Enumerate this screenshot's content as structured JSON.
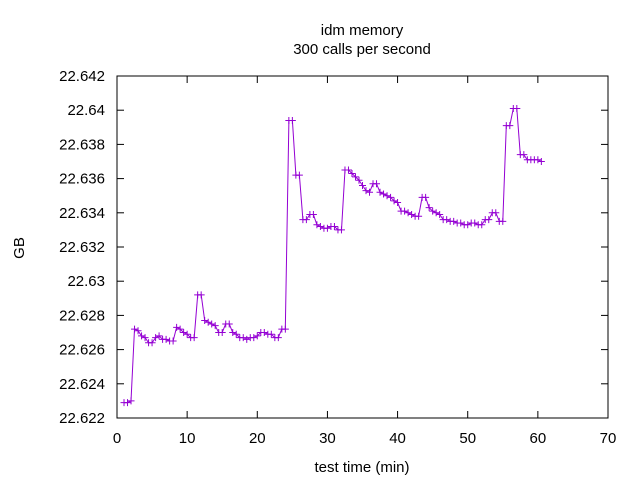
{
  "chart_data": {
    "type": "line",
    "title": "idm memory",
    "subtitle": "300 calls per second",
    "xlabel": "test time (min)",
    "ylabel": "GB",
    "xlim": [
      0,
      70
    ],
    "ylim": [
      22.622,
      22.642
    ],
    "xticks": [
      0,
      10,
      20,
      30,
      40,
      50,
      60,
      70
    ],
    "yticks": [
      22.622,
      22.624,
      22.626,
      22.628,
      22.63,
      22.632,
      22.634,
      22.636,
      22.638,
      22.64,
      22.642
    ],
    "ytick_labels": [
      "22.622",
      "22.624",
      "22.626",
      "22.628",
      "22.63",
      "22.632",
      "22.634",
      "22.636",
      "22.638",
      "22.64",
      "22.642"
    ],
    "grid": false,
    "legend": "none",
    "marker": "plus",
    "color": "#9400d3",
    "series": [
      {
        "x": [
          1.0,
          1.5,
          2.0,
          2.5,
          3.0,
          3.5,
          4.0,
          4.5,
          5.0,
          5.5,
          6.0,
          6.5,
          7.0,
          7.5,
          8.0,
          8.5,
          9.0,
          9.5,
          10.0,
          10.5,
          11.0,
          11.5,
          12.0,
          12.5,
          13.0,
          13.5,
          14.0,
          14.5,
          15.0,
          15.5,
          16.0,
          16.5,
          17.0,
          17.5,
          18.0,
          18.5,
          19.0,
          19.5,
          20.0,
          20.5,
          21.0,
          21.5,
          22.0,
          22.5,
          23.0,
          23.5,
          24.0,
          24.5,
          25.0,
          25.5,
          26.0,
          26.5,
          27.0,
          27.5,
          28.0,
          28.5,
          29.0,
          29.5,
          30.0,
          30.5,
          31.0,
          31.5,
          32.0,
          32.5,
          33.0,
          33.5,
          34.0,
          34.5,
          35.0,
          35.5,
          36.0,
          36.5,
          37.0,
          37.5,
          38.0,
          38.5,
          39.0,
          39.5,
          40.0,
          40.5,
          41.0,
          41.5,
          42.0,
          42.5,
          43.0,
          43.5,
          44.0,
          44.5,
          45.0,
          45.5,
          46.0,
          46.5,
          47.0,
          47.5,
          48.0,
          48.5,
          49.0,
          49.5,
          50.0,
          50.5,
          51.0,
          51.5,
          52.0,
          52.5,
          53.0,
          53.5,
          54.0,
          54.5,
          55.0,
          55.5,
          56.0,
          56.5,
          57.0,
          57.5,
          58.0,
          58.5,
          59.0,
          59.5,
          60.0,
          60.5
        ],
        "y": [
          22.6229,
          22.6229,
          22.623,
          22.6272,
          22.6271,
          22.6268,
          22.6267,
          22.6264,
          22.6264,
          22.6267,
          22.6268,
          22.6266,
          22.6266,
          22.6265,
          22.6265,
          22.6273,
          22.6272,
          22.627,
          22.6269,
          22.6267,
          22.6267,
          22.6292,
          22.6292,
          22.6277,
          22.6276,
          22.6275,
          22.6274,
          22.627,
          22.627,
          22.6275,
          22.6275,
          22.627,
          22.6269,
          22.6267,
          22.6267,
          22.6266,
          22.6267,
          22.6267,
          22.6268,
          22.627,
          22.627,
          22.6269,
          22.6269,
          22.6267,
          22.6267,
          22.6272,
          22.6272,
          22.6394,
          22.6394,
          22.6362,
          22.6362,
          22.6336,
          22.6336,
          22.6339,
          22.6339,
          22.6333,
          22.6332,
          22.6331,
          22.6331,
          22.6332,
          22.6332,
          22.633,
          22.633,
          22.6365,
          22.6365,
          22.6363,
          22.6361,
          22.6359,
          22.6356,
          22.6353,
          22.6352,
          22.6357,
          22.6357,
          22.6352,
          22.6351,
          22.635,
          22.6349,
          22.6347,
          22.6346,
          22.6341,
          22.6341,
          22.634,
          22.6339,
          22.6338,
          22.6338,
          22.6349,
          22.6349,
          22.6343,
          22.6341,
          22.634,
          22.6339,
          22.6336,
          22.6336,
          22.6335,
          22.6335,
          22.6334,
          22.6334,
          22.6333,
          22.6333,
          22.6334,
          22.6334,
          22.6333,
          22.6333,
          22.6336,
          22.6336,
          22.634,
          22.634,
          22.6335,
          22.6335,
          22.6391,
          22.6391,
          22.6401,
          22.6401,
          22.6374,
          22.6374,
          22.6371,
          22.6371,
          22.6371,
          22.6371,
          22.637
        ]
      }
    ]
  }
}
